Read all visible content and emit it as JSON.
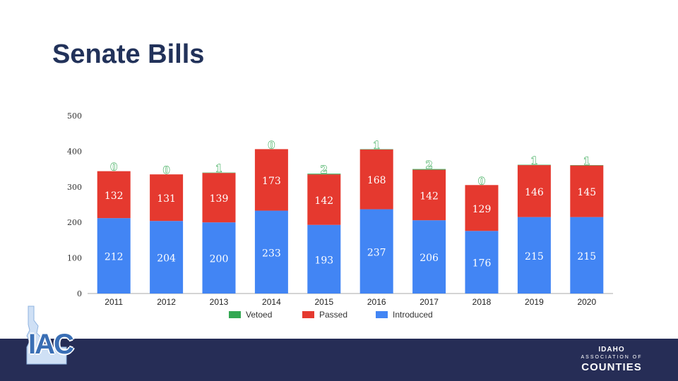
{
  "slide": {
    "title": "Senate Bills"
  },
  "logo_left": {
    "text": "IAC"
  },
  "logo_right": {
    "line1": "IDAHO",
    "line2": "ASSOCIATION OF",
    "line3": "COUNTIES"
  },
  "colors": {
    "introduced": "#4285f4",
    "passed": "#e5392f",
    "vetoed": "#34a853",
    "footer": "#262d56",
    "title": "#22325a"
  },
  "chart_data": {
    "type": "bar",
    "stacked": true,
    "categories": [
      "2011",
      "2012",
      "2013",
      "2014",
      "2015",
      "2016",
      "2017",
      "2018",
      "2019",
      "2020"
    ],
    "series": [
      {
        "name": "Introduced",
        "values": [
          212,
          204,
          200,
          233,
          193,
          237,
          206,
          176,
          215,
          215
        ]
      },
      {
        "name": "Passed",
        "values": [
          132,
          131,
          139,
          173,
          142,
          168,
          142,
          129,
          146,
          145
        ]
      },
      {
        "name": "Vetoed",
        "values": [
          0,
          0,
          1,
          0,
          2,
          1,
          2,
          0,
          1,
          1
        ]
      }
    ],
    "yticks": [
      "0",
      "100",
      "200",
      "300",
      "400",
      "500"
    ],
    "ylim": [
      0,
      500
    ],
    "title": "",
    "xlabel": "",
    "ylabel": "",
    "legend_position": "bottom",
    "grid": false
  }
}
